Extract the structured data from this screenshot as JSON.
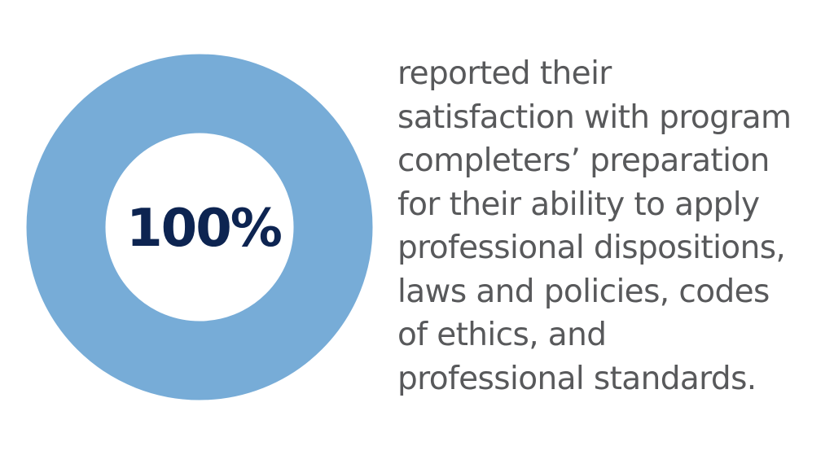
{
  "chart_data": {
    "type": "pie",
    "values": [
      100
    ],
    "center_label": "100%",
    "colors": {
      "ring": "#77acd7",
      "center_text": "#0d2451"
    }
  },
  "description_lines": [
    "reported their",
    "satisfaction with program",
    "completers’ preparation",
    "for their ability to apply",
    "professional dispositions,",
    "laws and policies, codes",
    "of ethics, and",
    "professional standards."
  ],
  "colors": {
    "body_text": "#58595b",
    "background": "#ffffff"
  }
}
